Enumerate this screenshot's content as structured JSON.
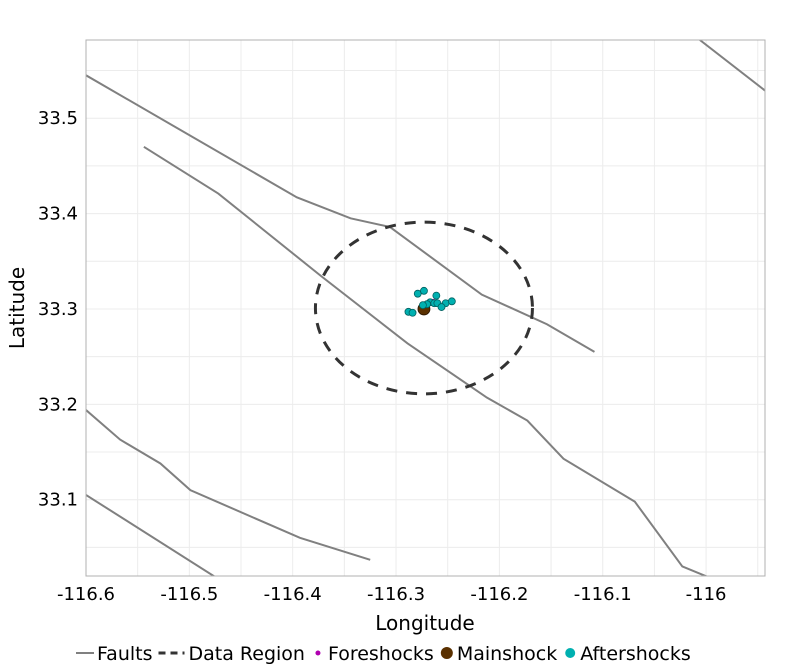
{
  "chart_data": {
    "type": "scatter",
    "title": "",
    "xlabel": "Longitude",
    "ylabel": "Latitude",
    "xlim": [
      -116.6,
      -115.943
    ],
    "ylim": [
      33.02,
      33.582
    ],
    "grid": true,
    "legend_placement": "bottom",
    "x_ticks": [
      -116.6,
      -116.5,
      -116.4,
      -116.3,
      -116.2,
      -116.1,
      -116.0
    ],
    "x_tick_labels": [
      "-116.6",
      "-116.5",
      "-116.4",
      "-116.3",
      "-116.2",
      "-116.1",
      "-116"
    ],
    "y_ticks": [
      33.1,
      33.2,
      33.3,
      33.4,
      33.5
    ],
    "y_tick_labels": [
      "33.1",
      "33.2",
      "33.3",
      "33.4",
      "33.5"
    ],
    "legend": [
      {
        "label": "Faults",
        "kind": "line",
        "color": "#808080"
      },
      {
        "label": "Data Region",
        "kind": "dashed",
        "color": "#333333"
      },
      {
        "label": "Foreshocks",
        "kind": "point",
        "color": "#b000b0"
      },
      {
        "label": "Mainshock",
        "kind": "point",
        "color": "#5a3000"
      },
      {
        "label": "Aftershocks",
        "kind": "point",
        "color": "#00b0b0"
      }
    ],
    "faults": [
      [
        [
          -116.6,
          33.545
        ],
        [
          -116.396,
          33.417
        ],
        [
          -116.344,
          33.395
        ],
        [
          -116.306,
          33.386
        ],
        [
          -116.217,
          33.315
        ],
        [
          -116.154,
          33.284
        ],
        [
          -116.108,
          33.255
        ]
      ],
      [
        [
          -116.544,
          33.47
        ],
        [
          -116.472,
          33.421
        ],
        [
          -116.372,
          33.334
        ],
        [
          -116.289,
          33.264
        ],
        [
          -116.212,
          33.207
        ],
        [
          -116.173,
          33.183
        ],
        [
          -116.138,
          33.143
        ],
        [
          -116.069,
          33.098
        ],
        [
          -116.023,
          33.03
        ],
        [
          -115.996,
          33.018
        ]
      ],
      [
        [
          -116.6,
          33.194
        ],
        [
          -116.567,
          33.163
        ],
        [
          -116.528,
          33.138
        ],
        [
          -116.499,
          33.11
        ],
        [
          -116.393,
          33.06
        ],
        [
          -116.325,
          33.037
        ]
      ],
      [
        [
          -116.6,
          33.105
        ],
        [
          -116.475,
          33.019
        ]
      ],
      [
        [
          -116.006,
          33.582
        ],
        [
          -115.943,
          33.529
        ]
      ]
    ],
    "data_region": {
      "center": [
        -116.273,
        33.301
      ],
      "radius_lon": 0.105,
      "radius_lat": 0.09
    },
    "foreshocks": [
      [
        -116.264,
        33.308
      ]
    ],
    "mainshock": [
      -116.273,
      33.3
    ],
    "aftershocks": [
      [
        -116.279,
        33.316
      ],
      [
        -116.273,
        33.319
      ],
      [
        -116.261,
        33.314
      ],
      [
        -116.267,
        33.307
      ],
      [
        -116.27,
        33.305
      ],
      [
        -116.263,
        33.306
      ],
      [
        -116.26,
        33.306
      ],
      [
        -116.252,
        33.306
      ],
      [
        -116.246,
        33.308
      ],
      [
        -116.256,
        33.302
      ],
      [
        -116.288,
        33.297
      ],
      [
        -116.284,
        33.296
      ],
      [
        -116.274,
        33.304
      ]
    ],
    "colors": {
      "fault": "#808080",
      "region": "#333333",
      "foreshock": "#b000b0",
      "mainshock": "#5a3000",
      "aftershock": "#00b0b0"
    }
  }
}
